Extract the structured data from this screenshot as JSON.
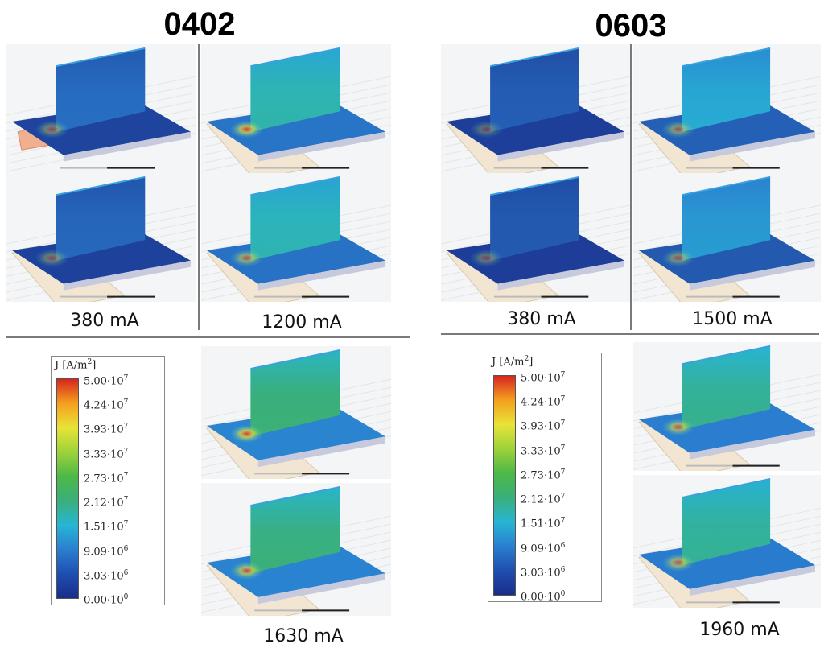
{
  "groups": [
    {
      "title": "0402",
      "captions": [
        "380 mA",
        "1200 mA",
        "1630 mA"
      ],
      "panels": [
        {
          "name": "sim-0402-380ma-a",
          "field": 0.2,
          "hot": 0.55,
          "pad": "red"
        },
        {
          "name": "sim-0402-1200ma-a",
          "field": 0.62,
          "hot": 0.95,
          "pad": "beige"
        },
        {
          "name": "sim-0402-380ma-b",
          "field": 0.18,
          "hot": 0.5,
          "pad": "beige"
        },
        {
          "name": "sim-0402-1200ma-b",
          "field": 0.6,
          "hot": 0.7,
          "pad": "beige"
        },
        {
          "name": "sim-0402-1630ma-a",
          "field": 0.78,
          "hot": 1.0,
          "pad": "beige"
        },
        {
          "name": "sim-0402-1630ma-b",
          "field": 0.76,
          "hot": 0.85,
          "pad": "beige"
        }
      ]
    },
    {
      "title": "0603",
      "captions": [
        "380 mA",
        "1500 mA",
        "1960 mA"
      ],
      "panels": [
        {
          "name": "sim-0603-380ma-a",
          "field": 0.15,
          "hot": 0.4,
          "pad": "beige"
        },
        {
          "name": "sim-0603-1500ma-a",
          "field": 0.45,
          "hot": 0.6,
          "pad": "beige"
        },
        {
          "name": "sim-0603-380ma-b",
          "field": 0.14,
          "hot": 0.45,
          "pad": "beige"
        },
        {
          "name": "sim-0603-1500ma-b",
          "field": 0.38,
          "hot": 0.55,
          "pad": "beige"
        },
        {
          "name": "sim-0603-1960ma-a",
          "field": 0.7,
          "hot": 0.8,
          "pad": "beige"
        },
        {
          "name": "sim-0603-1960ma-b",
          "field": 0.68,
          "hot": 0.75,
          "pad": "beige"
        }
      ]
    }
  ],
  "legend": {
    "title_base": "J [A/m",
    "title_exp": "2",
    "title_close": "]",
    "ticks": [
      {
        "mant": "5.00·10",
        "exp": "7"
      },
      {
        "mant": "4.24·10",
        "exp": "7"
      },
      {
        "mant": "3.93·10",
        "exp": "7"
      },
      {
        "mant": "3.33·10",
        "exp": "7"
      },
      {
        "mant": "2.73·10",
        "exp": "7"
      },
      {
        "mant": "2.12·10",
        "exp": "7"
      },
      {
        "mant": "1.51·10",
        "exp": "7"
      },
      {
        "mant": "9.09·10",
        "exp": "6"
      },
      {
        "mant": "3.03·10",
        "exp": "6"
      },
      {
        "mant": "0.00·10",
        "exp": "0"
      }
    ],
    "colors": [
      "#d7261e",
      "#f4a020",
      "#e8e337",
      "#9dd23a",
      "#4db848",
      "#3aaf7a",
      "#27b6d4",
      "#2a7fd0",
      "#1f4fb0",
      "#1a2d8a"
    ]
  }
}
